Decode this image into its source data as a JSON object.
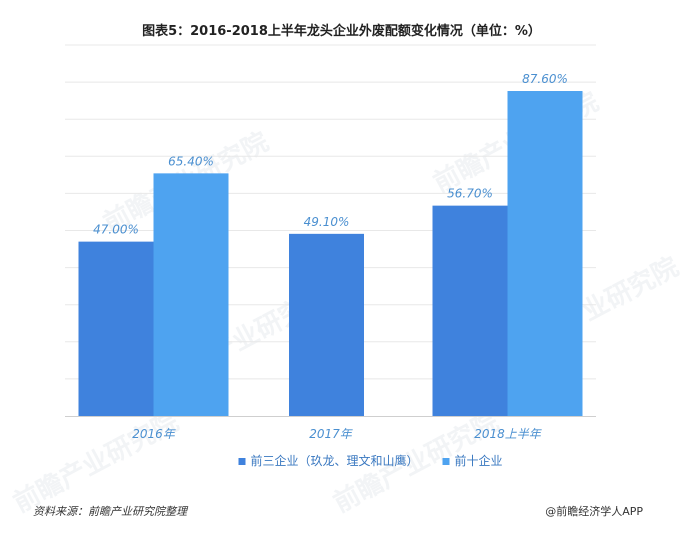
{
  "title": "图表5：2016-2018上半年龙头企业外废配额变化情况（单位：%）",
  "source": "资料来源：前瞻产业研究院整理",
  "credit": "@前瞻经济学人APP",
  "watermark": "前瞻产业研究院",
  "colors": {
    "series1": "#3f82dd",
    "series2": "#4ea3f0",
    "label": "#4a8fd0",
    "grid": "#e8e8e8",
    "axis": "#4a8fd0"
  },
  "chart_data": {
    "type": "bar",
    "categories": [
      "2016年",
      "2017年",
      "2018上半年"
    ],
    "series": [
      {
        "name": "前三企业（玖龙、理文和山鹰）",
        "values": [
          47.0,
          49.1,
          56.7
        ]
      },
      {
        "name": "前十企业",
        "values": [
          65.4,
          null,
          87.6
        ]
      }
    ],
    "data_labels": [
      [
        "47.00%",
        "49.10%",
        "56.70%"
      ],
      [
        "65.40%",
        null,
        "87.60%"
      ]
    ],
    "ylim": [
      0,
      100
    ],
    "grid": true,
    "legend": "bottom"
  }
}
